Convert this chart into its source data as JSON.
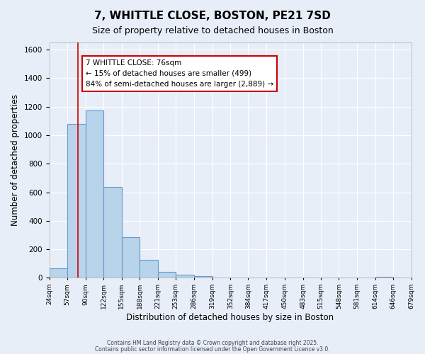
{
  "title": "7, WHITTLE CLOSE, BOSTON, PE21 7SD",
  "subtitle": "Size of property relative to detached houses in Boston",
  "xlabel": "Distribution of detached houses by size in Boston",
  "ylabel": "Number of detached properties",
  "bar_color": "#b8d4eb",
  "bar_edge_color": "#6699cc",
  "background_color": "#e8eef8",
  "grid_color": "#ffffff",
  "annotation_box_color": "#ffffff",
  "annotation_box_edge": "#cc0000",
  "red_line_x": 76,
  "annotation_text_line1": "7 WHITTLE CLOSE: 76sqm",
  "annotation_text_line2": "← 15% of detached houses are smaller (499)",
  "annotation_text_line3": "84% of semi-detached houses are larger (2,889) →",
  "footnote1": "Contains HM Land Registry data © Crown copyright and database right 2025.",
  "footnote2": "Contains public sector information licensed under the Open Government Licence v3.0.",
  "bin_edges": [
    24,
    57,
    90,
    122,
    155,
    188,
    221,
    253,
    286,
    319,
    352,
    384,
    417,
    450,
    483,
    515,
    548,
    581,
    614,
    646,
    679
  ],
  "bin_labels": [
    "24sqm",
    "57sqm",
    "90sqm",
    "122sqm",
    "155sqm",
    "188sqm",
    "221sqm",
    "253sqm",
    "286sqm",
    "319sqm",
    "352sqm",
    "384sqm",
    "417sqm",
    "450sqm",
    "483sqm",
    "515sqm",
    "548sqm",
    "581sqm",
    "614sqm",
    "646sqm",
    "679sqm"
  ],
  "counts": [
    65,
    1080,
    1175,
    635,
    285,
    125,
    40,
    20,
    10,
    0,
    0,
    0,
    0,
    0,
    0,
    0,
    0,
    0,
    5,
    3
  ],
  "ylim": [
    0,
    1650
  ],
  "yticks": [
    0,
    200,
    400,
    600,
    800,
    1000,
    1200,
    1400,
    1600
  ]
}
